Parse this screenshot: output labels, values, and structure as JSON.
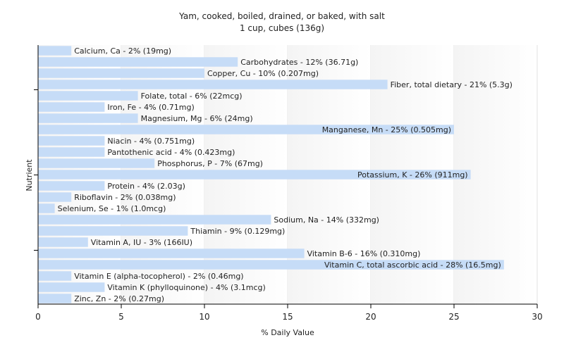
{
  "chart_data": {
    "type": "bar",
    "orientation": "horizontal",
    "title": "Yam, cooked, boiled, drained, or baked, with salt",
    "subtitle": "1 cup, cubes (136g)",
    "xlabel": "% Daily Value",
    "ylabel": "Nutrient",
    "xlim": [
      0,
      30
    ],
    "xticks": [
      "0",
      "5",
      "10",
      "15",
      "20",
      "25",
      "30"
    ],
    "grid": true,
    "colors": {
      "bar": "#c6dcf7",
      "plot_background": "#ffffff"
    },
    "categories": [
      "Calcium, Ca - 2% (19mg)",
      "Carbohydrates - 12% (36.71g)",
      "Copper, Cu - 10% (0.207mg)",
      "Fiber, total dietary - 21% (5.3g)",
      "Folate, total - 6% (22mcg)",
      "Iron, Fe - 4% (0.71mg)",
      "Magnesium, Mg - 6% (24mg)",
      "Manganese, Mn - 25% (0.505mg)",
      "Niacin - 4% (0.751mg)",
      "Pantothenic acid - 4% (0.423mg)",
      "Phosphorus, P - 7% (67mg)",
      "Potassium, K - 26% (911mg)",
      "Protein - 4% (2.03g)",
      "Riboflavin - 2% (0.038mg)",
      "Selenium, Se - 1% (1.0mcg)",
      "Sodium, Na - 14% (332mg)",
      "Thiamin - 9% (0.129mg)",
      "Vitamin A, IU - 3% (166IU)",
      "Vitamin B-6 - 16% (0.310mg)",
      "Vitamin C, total ascorbic acid - 28% (16.5mg)",
      "Vitamin E (alpha-tocopherol) - 2% (0.46mg)",
      "Vitamin K (phylloquinone) - 4% (3.1mcg)",
      "Zinc, Zn - 2% (0.27mg)"
    ],
    "values": [
      2,
      12,
      10,
      21,
      6,
      4,
      6,
      25,
      4,
      4,
      7,
      26,
      4,
      2,
      1,
      14,
      9,
      3,
      16,
      28,
      2,
      4,
      2
    ],
    "label_inside": [
      false,
      false,
      false,
      false,
      false,
      false,
      false,
      true,
      false,
      false,
      false,
      true,
      false,
      false,
      false,
      false,
      false,
      false,
      false,
      true,
      false,
      false,
      false
    ]
  }
}
